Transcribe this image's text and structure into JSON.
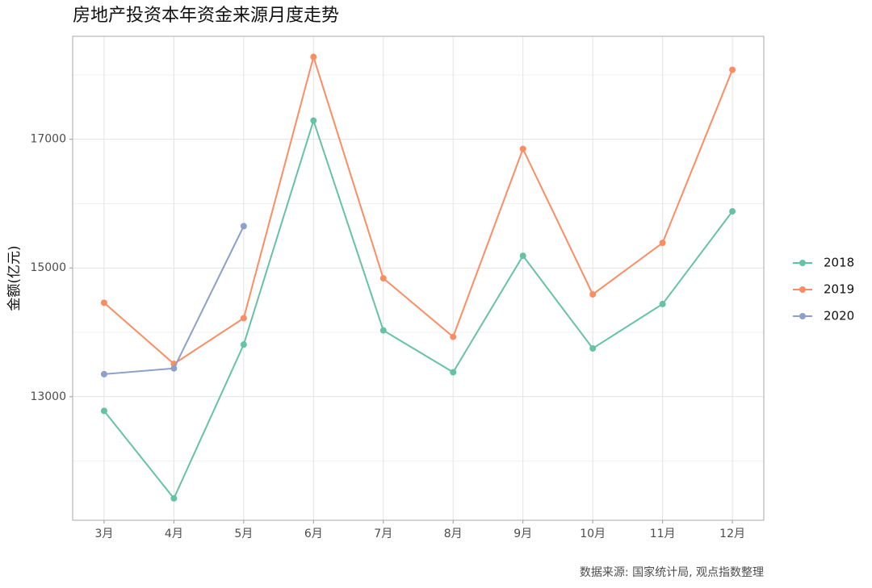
{
  "chart_data": {
    "type": "line",
    "title": "房地产投资本年资金来源月度走势",
    "y_label": "金额(亿元)",
    "caption": "数据来源: 国家统计局, 观点指数整理",
    "categories": [
      "3月",
      "4月",
      "5月",
      "6月",
      "7月",
      "8月",
      "9月",
      "10月",
      "11月",
      "12月"
    ],
    "series": [
      {
        "name": "2018",
        "color": "#66c2a5",
        "values": [
          12780,
          11420,
          13810,
          17290,
          14030,
          13380,
          15190,
          13750,
          14440,
          15880
        ]
      },
      {
        "name": "2019",
        "color": "#fc8d62",
        "values": [
          14460,
          13510,
          14220,
          18280,
          14840,
          13930,
          16850,
          14590,
          15390,
          18080
        ]
      },
      {
        "name": "2020",
        "color": "#8da0cb",
        "values": [
          13350,
          13440,
          15650,
          null,
          null,
          null,
          null,
          null,
          null,
          null
        ]
      }
    ],
    "ylim": [
      11080,
      18600
    ],
    "yticks": [
      13000,
      15000,
      17000
    ],
    "minor_yticks": [
      12000,
      14000,
      16000,
      18000
    ],
    "grid": true,
    "legend": "right"
  }
}
